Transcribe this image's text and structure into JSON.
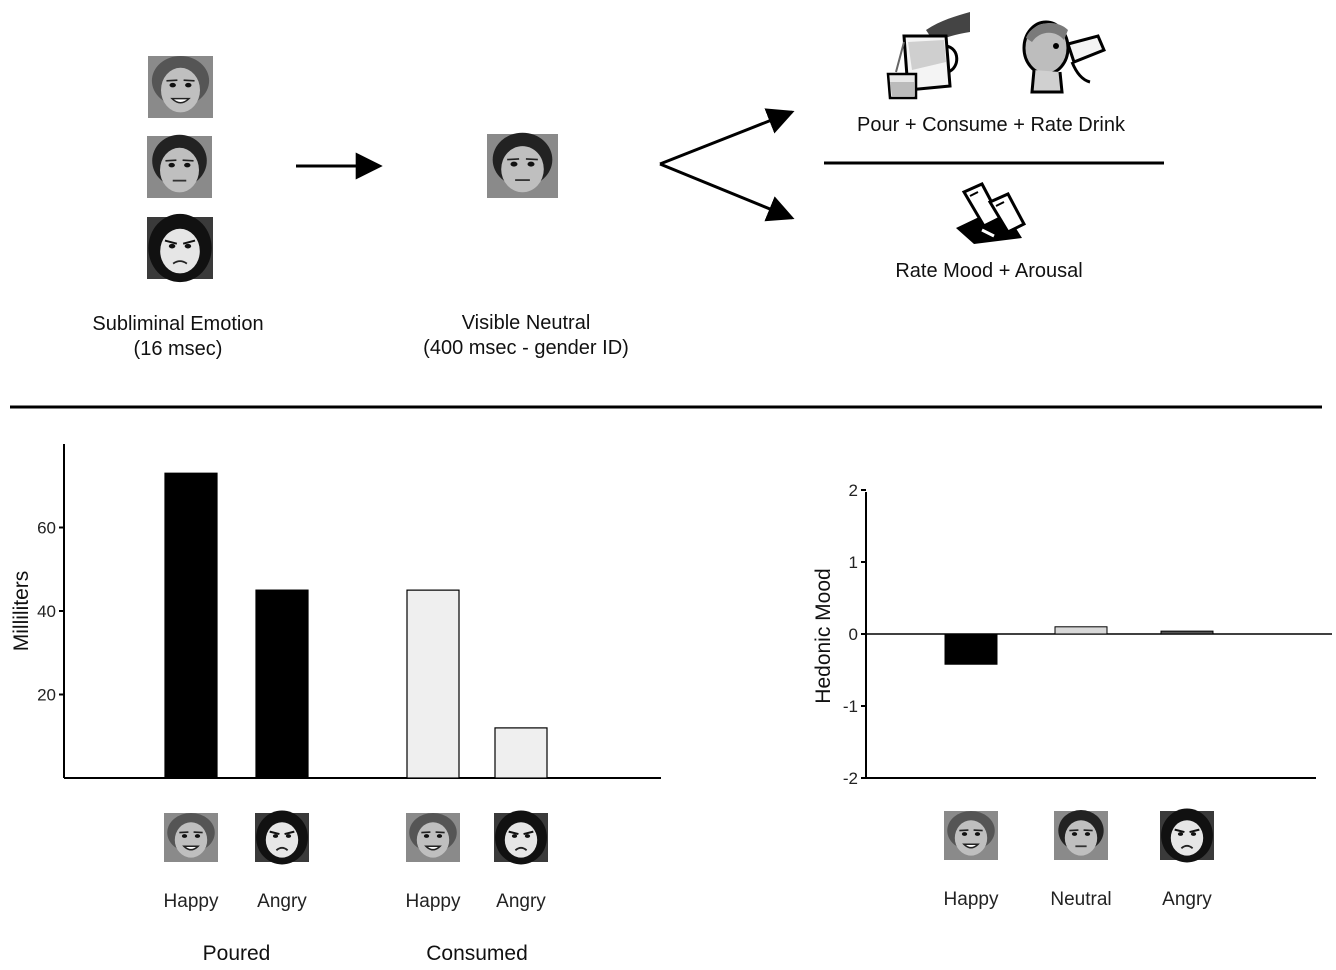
{
  "procedure": {
    "stage1_label": "Subliminal Emotion",
    "stage1_sublabel": "(16 msec)",
    "stage2_label": "Visible Neutral",
    "stage2_sublabel": "(400 msec - gender ID)",
    "outcome_top_label": "Pour + Consume + Rate Drink",
    "outcome_bottom_label": "Rate Mood + Arousal",
    "stimulus_faces": [
      "happy-face",
      "neutral-face",
      "angry-face"
    ],
    "drink_icons": [
      "pouring-pitcher-icon",
      "person-drinking-icon"
    ],
    "rating_icon": "pencil-rating-icon"
  },
  "chart_data": [
    {
      "type": "bar",
      "ylabel": "Milliliters",
      "yticks": [
        20,
        40,
        60
      ],
      "ylim": [
        0,
        80
      ],
      "groups": [
        {
          "name": "Poured",
          "categories": [
            "Happy",
            "Angry"
          ],
          "values": [
            73,
            45
          ],
          "color": "#000000"
        },
        {
          "name": "Consumed",
          "categories": [
            "Happy",
            "Angry"
          ],
          "values": [
            45,
            12
          ],
          "color": "#efefef"
        }
      ],
      "grid": false
    },
    {
      "type": "bar",
      "ylabel": "Hedonic Mood",
      "yticks": [
        2,
        1,
        0,
        -1,
        -2
      ],
      "ylim": [
        -2,
        2
      ],
      "categories": [
        "Happy",
        "Neutral",
        "Angry"
      ],
      "values": [
        -0.42,
        0.1,
        0.04
      ],
      "colors": [
        "#000000",
        "#d8d8d8",
        "#555555"
      ],
      "grid": false
    }
  ]
}
